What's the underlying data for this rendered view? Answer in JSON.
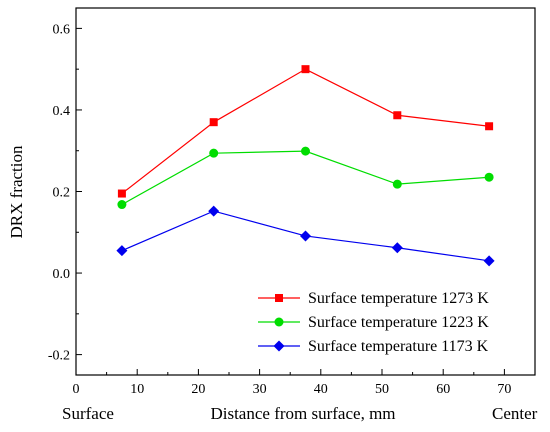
{
  "chart_data": {
    "type": "line",
    "title": "",
    "xlabel": "Distance from surface, mm",
    "ylabel": "DRX fraction",
    "xlim": [
      0,
      75
    ],
    "ylim": [
      -0.25,
      0.65
    ],
    "xticks": [
      0,
      10,
      20,
      30,
      40,
      50,
      60,
      70
    ],
    "yticks": [
      -0.2,
      0.0,
      0.2,
      0.4,
      0.6
    ],
    "ytick_labels": [
      "-0.2",
      "0.0",
      "0.2",
      "0.4",
      "0.6"
    ],
    "grid": false,
    "legend_position": "bottom-right",
    "end_labels": {
      "left": "Surface",
      "right": "Center"
    },
    "x": [
      7.5,
      22.5,
      37.5,
      52.5,
      67.5
    ],
    "series": [
      {
        "name": "Surface temperature 1273 K",
        "color": "#ff0000",
        "marker": "square",
        "values": [
          0.195,
          0.37,
          0.5,
          0.387,
          0.36
        ]
      },
      {
        "name": "Surface temperature 1223 K",
        "color": "#00dd00",
        "marker": "circle",
        "values": [
          0.168,
          0.294,
          0.299,
          0.218,
          0.235
        ]
      },
      {
        "name": "Surface temperature 1173 K",
        "color": "#0000ee",
        "marker": "diamond",
        "values": [
          0.055,
          0.152,
          0.091,
          0.062,
          0.03
        ]
      }
    ]
  }
}
